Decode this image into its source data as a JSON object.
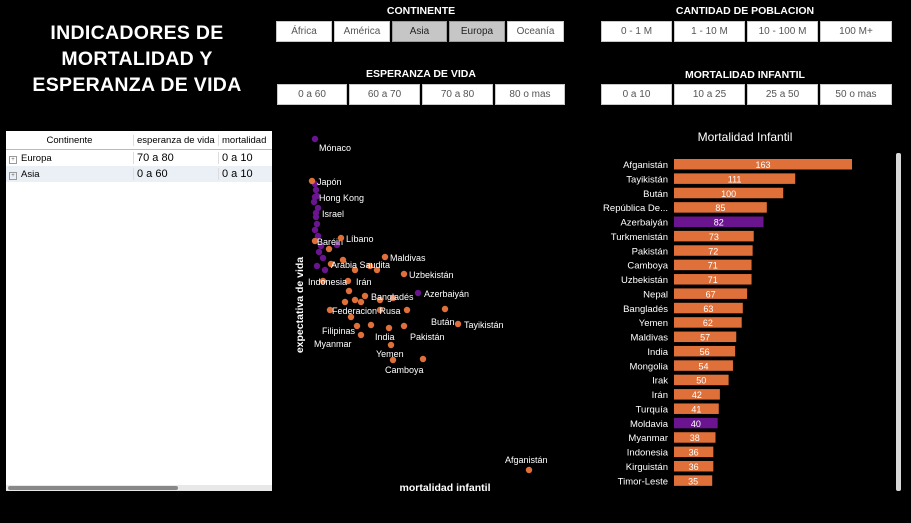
{
  "title": {
    "line1": "INDICADORES DE",
    "line2": "MORTALIDAD Y",
    "line3": "ESPERANZA DE VIDA"
  },
  "slicers": {
    "continente": {
      "title": "CONTINENTE",
      "options": [
        "África",
        "América",
        "Asia",
        "Europa",
        "Oceanía"
      ],
      "selected": [
        "Asia",
        "Europa"
      ]
    },
    "poblacion": {
      "title": "CANTIDAD DE POBLACION",
      "options": [
        "0 - 1 M",
        "1 - 10 M",
        "10 - 100 M",
        "100 M+"
      ],
      "selected": []
    },
    "esperanza": {
      "title": "ESPERANZA DE VIDA",
      "options": [
        "0 a 60",
        "60 a 70",
        "70 a 80",
        "80 o mas"
      ],
      "selected": []
    },
    "mortalidad": {
      "title": "MORTALIDAD INFANTIL",
      "options": [
        "0 a 10",
        "10 a 25",
        "25 a 50",
        "50 o mas"
      ],
      "selected": []
    }
  },
  "table": {
    "columns": [
      "Continente",
      "esperanza de vida",
      "mortalidad"
    ],
    "rows": [
      {
        "continente": "Europa",
        "esperanza": "70 a 80",
        "mortalidad": "0 a 10"
      },
      {
        "continente": "Asia",
        "esperanza": "0 a 60",
        "mortalidad": "0 a 10"
      }
    ]
  },
  "colors": {
    "orange": "#e0703a",
    "purple": "#6b1490",
    "background": "#000000"
  },
  "chart_data": [
    {
      "type": "scatter",
      "xlabel": "mortalidad infantil",
      "ylabel": "expectativa de vida",
      "labeled_points": [
        {
          "name": "Mónaco",
          "color": "purple"
        },
        {
          "name": "Japón",
          "color": "orange"
        },
        {
          "name": "Hong Kong",
          "color": "purple"
        },
        {
          "name": "Israel",
          "color": "purple"
        },
        {
          "name": "Baréin",
          "color": "orange"
        },
        {
          "name": "Líbano",
          "color": "orange"
        },
        {
          "name": "Maldivas",
          "color": "orange"
        },
        {
          "name": "Arabia Saudita",
          "color": "orange"
        },
        {
          "name": "Uzbekistán",
          "color": "orange"
        },
        {
          "name": "Irán",
          "color": "orange"
        },
        {
          "name": "Indonesia",
          "color": "orange"
        },
        {
          "name": "Azerbaiyán",
          "color": "purple"
        },
        {
          "name": "Bangladés",
          "color": "orange"
        },
        {
          "name": "Federacion Rusa",
          "color": "orange"
        },
        {
          "name": "Bután",
          "color": "orange"
        },
        {
          "name": "Tayikistán",
          "color": "orange"
        },
        {
          "name": "Filipinas",
          "color": "orange"
        },
        {
          "name": "Pakistán",
          "color": "orange"
        },
        {
          "name": "India",
          "color": "orange"
        },
        {
          "name": "Myanmar",
          "color": "orange"
        },
        {
          "name": "Yemen",
          "color": "orange"
        },
        {
          "name": "Camboya",
          "color": "orange"
        },
        {
          "name": "Afganistán",
          "color": "orange"
        }
      ]
    },
    {
      "type": "bar",
      "title": "Mortalidad Infantil",
      "categories": [
        "Afganistán",
        "Tayikistán",
        "Bután",
        "República De...",
        "Azerbaiyán",
        "Turkmenistán",
        "Pakistán",
        "Camboya",
        "Uzbekistán",
        "Nepal",
        "Bangladés",
        "Yemen",
        "Maldivas",
        "India",
        "Mongolia",
        "Irak",
        "Irán",
        "Turquía",
        "Moldavia",
        "Myanmar",
        "Indonesia",
        "Kirguistán",
        "Timor-Leste"
      ],
      "values": [
        163,
        111,
        100,
        85,
        82,
        73,
        72,
        71,
        71,
        67,
        63,
        62,
        57,
        56,
        54,
        50,
        42,
        41,
        40,
        38,
        36,
        36,
        35
      ],
      "colors": [
        "orange",
        "orange",
        "orange",
        "orange",
        "purple",
        "orange",
        "orange",
        "orange",
        "orange",
        "orange",
        "orange",
        "orange",
        "orange",
        "orange",
        "orange",
        "orange",
        "orange",
        "orange",
        "purple",
        "orange",
        "orange",
        "orange",
        "orange"
      ]
    }
  ]
}
